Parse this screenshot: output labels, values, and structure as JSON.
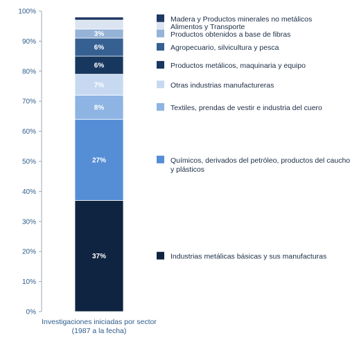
{
  "chart_data": {
    "type": "bar",
    "stacked": true,
    "categories": [
      "Investigaciones iniciadas por sector (1987 a la fecha)"
    ],
    "category_lines": [
      "Investigaciones iniciadas por sector",
      "(1987 a la fecha)"
    ],
    "ylim": [
      0,
      100
    ],
    "yticks": [
      "0%",
      "10%",
      "20%",
      "30%",
      "40%",
      "50%",
      "60%",
      "70%",
      "80%",
      "90%",
      "100%"
    ],
    "grid": false,
    "legend_position": "right",
    "series": [
      {
        "name": "Industrias metálicas básicas y sus manufacturas",
        "name_lines": [
          "Industrias metálicas básicas y sus manufacturas"
        ],
        "value": 37,
        "label": "37%",
        "color": "#0f2440"
      },
      {
        "name": "Químicos, derivados del petróleo, productos del caucho y plásticos",
        "name_lines": [
          "Químicos, derivados del petróleo, productos del caucho",
          "y plásticos"
        ],
        "value": 27,
        "label": "27%",
        "color": "#558ed5"
      },
      {
        "name": "Textiles, prendas de vestir e industria del cuero",
        "name_lines": [
          "Textiles, prendas de vestir e industria del cuero"
        ],
        "value": 8,
        "label": "8%",
        "color": "#8eb4e3"
      },
      {
        "name": "Otras industrias manufactureras",
        "name_lines": [
          "Otras industrias manufactureras"
        ],
        "value": 7,
        "label": "7%",
        "color": "#c6d9f1"
      },
      {
        "name": "Productos metálicos, maquinaria y equipo",
        "name_lines": [
          "Productos metálicos, maquinaria y equipo"
        ],
        "value": 6,
        "label": "6%",
        "color": "#17375e"
      },
      {
        "name": "Agropecuario, silvicultura y pesca",
        "name_lines": [
          "Agropecuario, silvicultura y pesca"
        ],
        "value": 6,
        "label": "6%",
        "color": "#376092"
      },
      {
        "name": "Productos obtenidos a base de fibras",
        "name_lines": [
          "Productos obtenidos a base de fibras"
        ],
        "value": 3,
        "label": "3%",
        "color": "#95b3d7"
      },
      {
        "name": "Alimentos y Transporte",
        "name_lines": [
          "Alimentos y Transporte"
        ],
        "value": 3,
        "label": "",
        "color": "#dbe5f1"
      },
      {
        "name": "Madera y Productos minerales no metálicos",
        "name_lines": [
          "Madera y Productos minerales no metálicos"
        ],
        "value": 1,
        "label": "",
        "color": "#1f3864"
      }
    ]
  }
}
